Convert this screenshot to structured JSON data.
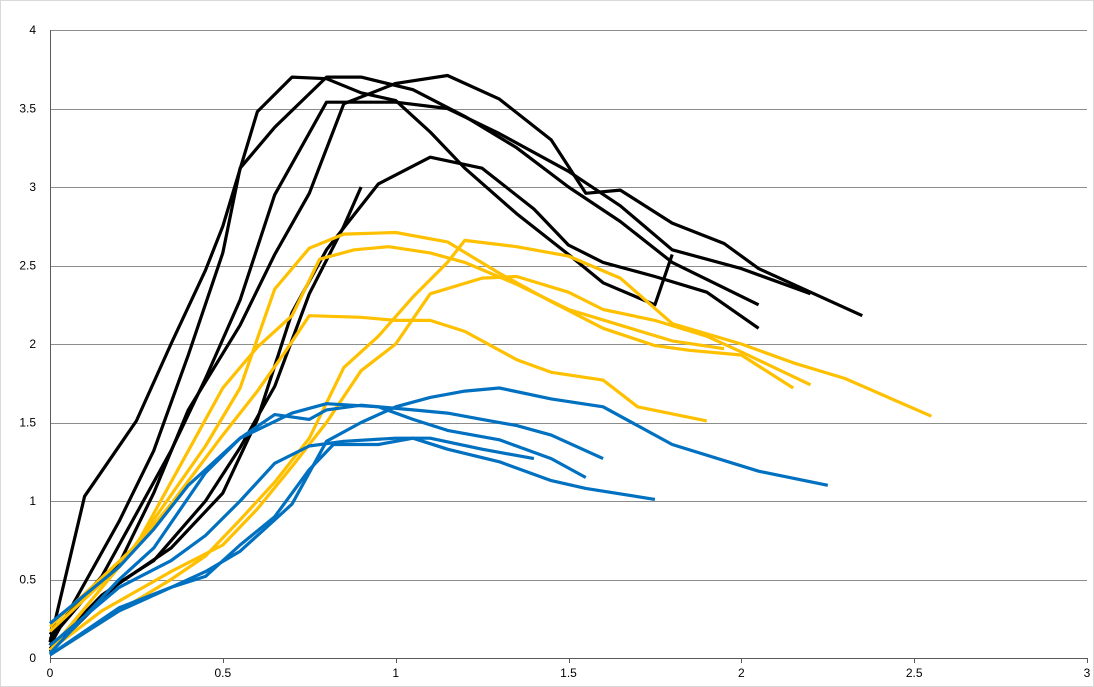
{
  "chart_data": {
    "type": "line",
    "title": "",
    "xlabel": "",
    "ylabel": "",
    "xlim": [
      0,
      3
    ],
    "ylim": [
      0,
      4
    ],
    "x_ticks": [
      "0",
      "0.5",
      "1",
      "1.5",
      "2",
      "2.5",
      "3"
    ],
    "y_ticks": [
      "0",
      "0.5",
      "1",
      "1.5",
      "2",
      "2.5",
      "3",
      "3.5",
      "4"
    ],
    "grid": "horizontal",
    "legend": "none",
    "colors": {
      "black": "#000000",
      "yellow": "#ffc000",
      "blue": "#0070c0"
    },
    "series": [
      {
        "color": "black",
        "points": [
          [
            0,
            0.1
          ],
          [
            0.1,
            1.03
          ],
          [
            0.25,
            1.51
          ],
          [
            0.35,
            2.0
          ],
          [
            0.45,
            2.47
          ],
          [
            0.5,
            2.75
          ],
          [
            0.6,
            3.48
          ],
          [
            0.7,
            3.7
          ],
          [
            0.8,
            3.69
          ],
          [
            0.9,
            3.6
          ],
          [
            1.0,
            3.55
          ],
          [
            1.1,
            3.35
          ],
          [
            1.2,
            3.12
          ],
          [
            1.35,
            2.83
          ],
          [
            1.5,
            2.57
          ],
          [
            1.6,
            2.39
          ],
          [
            1.75,
            2.25
          ],
          [
            1.8,
            2.57
          ]
        ]
      },
      {
        "color": "black",
        "points": [
          [
            0,
            0.08
          ],
          [
            0.2,
            0.87
          ],
          [
            0.3,
            1.32
          ],
          [
            0.4,
            1.93
          ],
          [
            0.5,
            2.58
          ],
          [
            0.55,
            3.12
          ],
          [
            0.65,
            3.38
          ],
          [
            0.8,
            3.7
          ],
          [
            0.9,
            3.7
          ],
          [
            1.05,
            3.62
          ],
          [
            1.2,
            3.45
          ],
          [
            1.35,
            3.25
          ],
          [
            1.5,
            3.0
          ],
          [
            1.65,
            2.78
          ],
          [
            1.8,
            2.52
          ],
          [
            2.05,
            2.25
          ]
        ]
      },
      {
        "color": "black",
        "points": [
          [
            0,
            0.15
          ],
          [
            0.15,
            0.52
          ],
          [
            0.35,
            1.32
          ],
          [
            0.45,
            1.78
          ],
          [
            0.55,
            2.28
          ],
          [
            0.65,
            2.95
          ],
          [
            0.8,
            3.54
          ],
          [
            1.0,
            3.54
          ],
          [
            1.15,
            3.5
          ],
          [
            1.3,
            3.34
          ],
          [
            1.5,
            3.1
          ],
          [
            1.65,
            2.88
          ],
          [
            1.8,
            2.6
          ],
          [
            2.0,
            2.48
          ],
          [
            2.2,
            2.32
          ]
        ]
      },
      {
        "color": "black",
        "points": [
          [
            0,
            0.12
          ],
          [
            0.1,
            0.38
          ],
          [
            0.2,
            0.6
          ],
          [
            0.3,
            1.05
          ],
          [
            0.4,
            1.58
          ],
          [
            0.55,
            2.12
          ],
          [
            0.65,
            2.57
          ],
          [
            0.75,
            2.96
          ],
          [
            0.85,
            3.53
          ],
          [
            1.0,
            3.66
          ],
          [
            1.15,
            3.71
          ],
          [
            1.3,
            3.56
          ],
          [
            1.45,
            3.3
          ],
          [
            1.55,
            2.96
          ],
          [
            1.65,
            2.98
          ],
          [
            1.8,
            2.77
          ],
          [
            1.95,
            2.64
          ],
          [
            2.05,
            2.48
          ],
          [
            2.35,
            2.18
          ]
        ]
      },
      {
        "color": "black",
        "points": [
          [
            0,
            0.06
          ],
          [
            0.15,
            0.4
          ],
          [
            0.25,
            0.55
          ],
          [
            0.35,
            0.7
          ],
          [
            0.5,
            1.05
          ],
          [
            0.6,
            1.52
          ],
          [
            0.7,
            2.2
          ],
          [
            0.8,
            2.6
          ],
          [
            0.95,
            3.02
          ],
          [
            1.1,
            3.19
          ],
          [
            1.25,
            3.12
          ],
          [
            1.4,
            2.86
          ],
          [
            1.5,
            2.63
          ],
          [
            1.6,
            2.52
          ],
          [
            1.75,
            2.43
          ],
          [
            1.9,
            2.33
          ],
          [
            2.05,
            2.1
          ]
        ]
      },
      {
        "color": "black",
        "points": [
          [
            0,
            0.04
          ],
          [
            0.1,
            0.26
          ],
          [
            0.2,
            0.48
          ],
          [
            0.3,
            0.62
          ],
          [
            0.45,
            1.0
          ],
          [
            0.55,
            1.34
          ],
          [
            0.65,
            1.73
          ],
          [
            0.75,
            2.32
          ],
          [
            0.85,
            2.75
          ],
          [
            0.9,
            3.0
          ]
        ]
      },
      {
        "color": "yellow",
        "points": [
          [
            0,
            0.2
          ],
          [
            0.25,
            0.72
          ],
          [
            0.4,
            1.32
          ],
          [
            0.5,
            1.72
          ],
          [
            0.6,
            1.98
          ],
          [
            0.7,
            2.18
          ],
          [
            0.78,
            2.54
          ],
          [
            0.88,
            2.6
          ],
          [
            0.98,
            2.62
          ],
          [
            1.1,
            2.58
          ],
          [
            1.2,
            2.52
          ],
          [
            1.35,
            2.38
          ],
          [
            1.5,
            2.22
          ],
          [
            1.65,
            2.12
          ],
          [
            1.8,
            2.02
          ],
          [
            1.95,
            1.97
          ]
        ]
      },
      {
        "color": "yellow",
        "points": [
          [
            0,
            0.17
          ],
          [
            0.2,
            0.58
          ],
          [
            0.35,
            0.98
          ],
          [
            0.5,
            1.42
          ],
          [
            0.6,
            1.7
          ],
          [
            0.68,
            1.95
          ],
          [
            0.75,
            2.18
          ],
          [
            0.9,
            2.17
          ],
          [
            1.0,
            2.15
          ],
          [
            1.1,
            2.15
          ],
          [
            1.2,
            2.08
          ],
          [
            1.35,
            1.9
          ],
          [
            1.45,
            1.82
          ],
          [
            1.6,
            1.77
          ],
          [
            1.7,
            1.6
          ],
          [
            1.9,
            1.51
          ]
        ]
      },
      {
        "color": "yellow",
        "points": [
          [
            0,
            0.05
          ],
          [
            0.2,
            0.58
          ],
          [
            0.3,
            0.88
          ],
          [
            0.45,
            1.35
          ],
          [
            0.55,
            1.72
          ],
          [
            0.65,
            2.35
          ],
          [
            0.75,
            2.61
          ],
          [
            0.85,
            2.7
          ],
          [
            1.0,
            2.71
          ],
          [
            1.15,
            2.65
          ],
          [
            1.3,
            2.45
          ],
          [
            1.45,
            2.27
          ],
          [
            1.6,
            2.1
          ],
          [
            1.75,
            1.99
          ],
          [
            1.85,
            1.96
          ],
          [
            2.0,
            1.93
          ],
          [
            2.15,
            1.72
          ]
        ]
      },
      {
        "color": "yellow",
        "points": [
          [
            0,
            0.02
          ],
          [
            0.2,
            0.3
          ],
          [
            0.35,
            0.5
          ],
          [
            0.45,
            0.65
          ],
          [
            0.55,
            0.88
          ],
          [
            0.65,
            1.12
          ],
          [
            0.75,
            1.4
          ],
          [
            0.85,
            1.85
          ],
          [
            0.95,
            2.05
          ],
          [
            1.05,
            2.3
          ],
          [
            1.15,
            2.52
          ],
          [
            1.2,
            2.66
          ],
          [
            1.35,
            2.62
          ],
          [
            1.5,
            2.56
          ],
          [
            1.65,
            2.42
          ],
          [
            1.8,
            2.13
          ],
          [
            2.0,
            2.0
          ],
          [
            2.15,
            1.88
          ],
          [
            2.3,
            1.78
          ],
          [
            2.55,
            1.54
          ]
        ]
      },
      {
        "color": "yellow",
        "points": [
          [
            0,
            0.05
          ],
          [
            0.15,
            0.3
          ],
          [
            0.35,
            0.55
          ],
          [
            0.5,
            0.72
          ],
          [
            0.6,
            0.95
          ],
          [
            0.7,
            1.22
          ],
          [
            0.8,
            1.5
          ],
          [
            0.9,
            1.83
          ],
          [
            1.0,
            2.0
          ],
          [
            1.1,
            2.32
          ],
          [
            1.25,
            2.42
          ],
          [
            1.35,
            2.43
          ],
          [
            1.5,
            2.33
          ],
          [
            1.6,
            2.22
          ],
          [
            1.75,
            2.15
          ],
          [
            1.9,
            2.05
          ],
          [
            2.0,
            1.95
          ],
          [
            2.2,
            1.74
          ]
        ]
      },
      {
        "color": "blue",
        "points": [
          [
            0,
            0.22
          ],
          [
            0.2,
            0.58
          ],
          [
            0.3,
            0.82
          ],
          [
            0.4,
            1.1
          ],
          [
            0.5,
            1.3
          ],
          [
            0.55,
            1.4
          ],
          [
            0.65,
            1.55
          ],
          [
            0.75,
            1.52
          ],
          [
            0.8,
            1.58
          ],
          [
            0.9,
            1.61
          ],
          [
            1.05,
            1.58
          ],
          [
            1.15,
            1.56
          ],
          [
            1.25,
            1.52
          ],
          [
            1.35,
            1.48
          ],
          [
            1.45,
            1.42
          ],
          [
            1.6,
            1.27
          ]
        ]
      },
      {
        "color": "blue",
        "points": [
          [
            0,
            0.03
          ],
          [
            0.2,
            0.5
          ],
          [
            0.3,
            0.7
          ],
          [
            0.45,
            1.18
          ],
          [
            0.55,
            1.4
          ],
          [
            0.7,
            1.56
          ],
          [
            0.8,
            1.62
          ],
          [
            0.95,
            1.6
          ],
          [
            1.05,
            1.52
          ],
          [
            1.15,
            1.45
          ],
          [
            1.3,
            1.39
          ],
          [
            1.45,
            1.27
          ],
          [
            1.55,
            1.15
          ]
        ]
      },
      {
        "color": "blue",
        "points": [
          [
            0,
            0.08
          ],
          [
            0.2,
            0.45
          ],
          [
            0.35,
            0.62
          ],
          [
            0.45,
            0.78
          ],
          [
            0.55,
            1.0
          ],
          [
            0.65,
            1.24
          ],
          [
            0.75,
            1.35
          ],
          [
            0.85,
            1.38
          ],
          [
            1.0,
            1.4
          ],
          [
            1.1,
            1.4
          ],
          [
            1.25,
            1.33
          ],
          [
            1.4,
            1.27
          ]
        ]
      },
      {
        "color": "blue",
        "points": [
          [
            0,
            0.02
          ],
          [
            0.2,
            0.3
          ],
          [
            0.35,
            0.45
          ],
          [
            0.45,
            0.52
          ],
          [
            0.55,
            0.72
          ],
          [
            0.65,
            0.9
          ],
          [
            0.75,
            1.2
          ],
          [
            0.82,
            1.36
          ],
          [
            0.95,
            1.36
          ],
          [
            1.05,
            1.4
          ],
          [
            1.15,
            1.33
          ],
          [
            1.3,
            1.25
          ],
          [
            1.45,
            1.13
          ],
          [
            1.55,
            1.08
          ],
          [
            1.75,
            1.01
          ]
        ]
      },
      {
        "color": "blue",
        "points": [
          [
            0,
            0.02
          ],
          [
            0.2,
            0.32
          ],
          [
            0.35,
            0.45
          ],
          [
            0.45,
            0.55
          ],
          [
            0.55,
            0.68
          ],
          [
            0.62,
            0.82
          ],
          [
            0.7,
            0.98
          ],
          [
            0.8,
            1.38
          ],
          [
            0.9,
            1.5
          ],
          [
            1.0,
            1.6
          ],
          [
            1.1,
            1.66
          ],
          [
            1.2,
            1.7
          ],
          [
            1.3,
            1.72
          ],
          [
            1.45,
            1.65
          ],
          [
            1.6,
            1.6
          ],
          [
            1.8,
            1.36
          ],
          [
            2.05,
            1.19
          ],
          [
            2.25,
            1.1
          ]
        ]
      }
    ]
  }
}
